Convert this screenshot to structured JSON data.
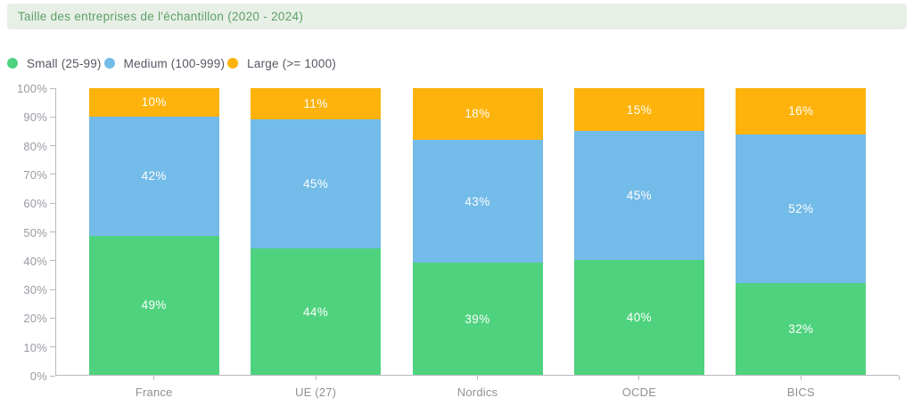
{
  "header": {
    "title": "Taille des entreprises de l'échantillon (2020 - 2024)"
  },
  "colors": {
    "banner_bg": "#e7efe7",
    "banner_text": "#5ea065",
    "axis": "#b9bac1",
    "small": "#4fd27e",
    "medium": "#73bbe8",
    "large": "#fdb30c"
  },
  "chart_data": {
    "type": "bar",
    "stacked": true,
    "percent": true,
    "title": "Taille des entreprises de l'échantillon (2020 - 2024)",
    "xlabel": "",
    "ylabel": "",
    "ylim": [
      0,
      100
    ],
    "grid": false,
    "legend_position": "top-left",
    "value_label_format": "{v}%",
    "categories": [
      "France",
      "UE (27)",
      "Nordics",
      "OCDE",
      "BICS"
    ],
    "series": [
      {
        "name": "Small (25-99)",
        "color": "#4fd27e",
        "values": [
          49,
          44,
          39,
          40,
          32
        ]
      },
      {
        "name": "Medium (100-999)",
        "color": "#73bbe8",
        "values": [
          42,
          45,
          43,
          45,
          52
        ]
      },
      {
        "name": "Large (>= 1000)",
        "color": "#fdb30c",
        "values": [
          10,
          11,
          18,
          15,
          16
        ]
      }
    ],
    "y_ticks": [
      "0%",
      "10%",
      "20%",
      "30%",
      "40%",
      "50%",
      "60%",
      "70%",
      "80%",
      "90%",
      "100%"
    ]
  }
}
